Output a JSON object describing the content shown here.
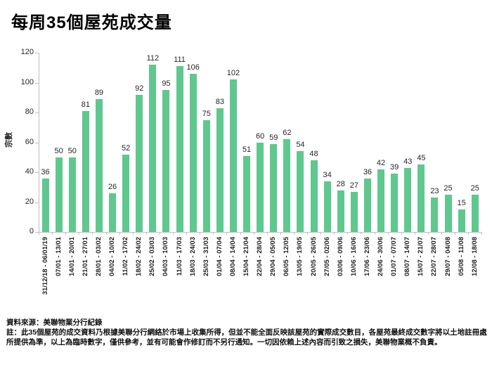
{
  "title": "每周35個屋苑成交量",
  "chart_data": {
    "type": "bar",
    "title": "每周35個屋苑成交量",
    "xlabel": "",
    "ylabel": "宗數",
    "ylim": [
      0,
      120
    ],
    "yticks": [
      0,
      20,
      40,
      60,
      80,
      100,
      120
    ],
    "grid": false,
    "legend": false,
    "data_labels": true,
    "bar_color": "#5ec88e",
    "axis_color": "#bfbfbf",
    "label_color": "#262626",
    "categories": [
      "31/12/18 - 06/01/19",
      "07/01 - 13/01",
      "14/01 - 20/01",
      "21/01 - 27/01",
      "28/01 - 03/02",
      "04/02 - 10/02",
      "11/02 - 17/02",
      "18/02 - 24/02",
      "25/02 - 03/03",
      "04/03 - 10/03",
      "11/03 - 17/03",
      "18/03 - 24/03",
      "25/03 - 31/03",
      "01/04 - 07/04",
      "08/04 - 14/04",
      "15/04 - 21/04",
      "22/04 - 28/04",
      "29/04 - 05/05",
      "06/05 - 12/05",
      "13/05 - 19/05",
      "20/05 - 26/05",
      "27/05 - 02/06",
      "03/06 - 09/06",
      "10/06 - 16/06",
      "17/06 - 23/06",
      "24/06 - 30/06",
      "01/07 - 07/07",
      "08/07 - 14/07",
      "15/07 - 21/07",
      "22/07 - 28/07",
      "29/07 - 04/08",
      "05/08 - 11/08",
      "12/08 - 18/08"
    ],
    "values": [
      36,
      50,
      50,
      81,
      89,
      26,
      52,
      92,
      112,
      95,
      111,
      106,
      75,
      83,
      102,
      51,
      60,
      59,
      62,
      54,
      48,
      34,
      28,
      27,
      36,
      42,
      39,
      43,
      45,
      23,
      25,
      15,
      25
    ]
  },
  "footer": {
    "source": "資料來源：美聯物業分行紀錄",
    "note_line1": "註：此35個屋苑的成交資料乃根據美聯分行網絡於市場上收集所得，但並不能全面反映該屋苑的實際成交數目，各屋苑最終成交數字將以土地註冊處",
    "note_line2": "所提供為準，以上為臨時數字，僅供參考，並有可能會作修訂而不另行通知。一切因依賴上述內容而引致之損失，美聯物業概不負責。"
  }
}
